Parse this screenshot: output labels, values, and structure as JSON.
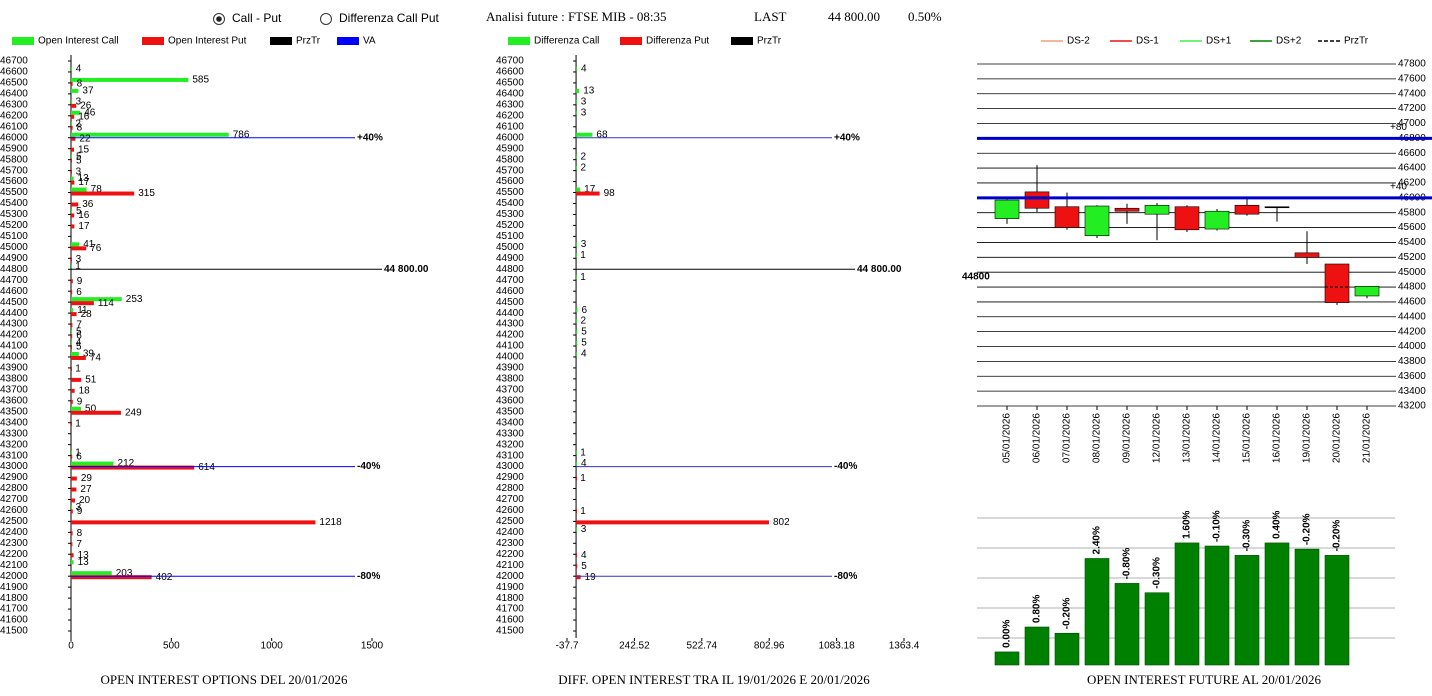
{
  "header": {
    "options": [
      {
        "label": "Call - Put",
        "selected": true
      },
      {
        "label": "Differenza Call Put",
        "selected": false
      }
    ],
    "title": "Analisi future : FTSE MIB - 08:35",
    "last_label": "LAST",
    "last_value": "44 800.00",
    "change": "0.50%"
  },
  "chart_data": [
    {
      "type": "hbar",
      "title": "OPEN INTEREST OPTIONS DEL 20/01/2026",
      "xlim": [
        0,
        1500
      ],
      "xticks": [
        0,
        500,
        1000,
        1500
      ],
      "ylim": [
        41500,
        46700
      ],
      "yticks": [
        46700,
        46600,
        46500,
        46400,
        46300,
        46200,
        46100,
        46000,
        45900,
        45800,
        45700,
        45600,
        45500,
        45400,
        45300,
        45200,
        45100,
        45000,
        44900,
        44800,
        44700,
        44600,
        44500,
        44400,
        44300,
        44200,
        44100,
        44000,
        43900,
        43800,
        43700,
        43600,
        43500,
        43400,
        43300,
        43200,
        43100,
        43000,
        42900,
        42800,
        42700,
        42600,
        42500,
        42400,
        42300,
        42200,
        42100,
        42000,
        41900,
        41800,
        41700,
        41600,
        41500
      ],
      "series": [
        {
          "name": "Open Interest Call",
          "color": "#22ee22",
          "y": [
            46600,
            46500,
            46400,
            46300,
            46200,
            46100,
            46000,
            45800,
            45600,
            45500,
            45300,
            45000,
            44800,
            44500,
            44400,
            44200,
            44100,
            44000,
            43500,
            43100,
            43000,
            42600,
            42100,
            42000
          ],
          "values": [
            4,
            585,
            37,
            3,
            46,
            2,
            786,
            5,
            13,
            78,
            5,
            41,
            1,
            253,
            11,
            5,
            4,
            39,
            50,
            1,
            212,
            3,
            13,
            203
          ]
        },
        {
          "name": "Open Interest Put",
          "color": "#ee1111",
          "y": [
            46500,
            46300,
            46200,
            46100,
            46000,
            45900,
            45800,
            45700,
            45600,
            45500,
            45400,
            45300,
            45200,
            45000,
            44900,
            44700,
            44600,
            44500,
            44400,
            44300,
            44200,
            44100,
            44000,
            43900,
            43800,
            43700,
            43600,
            43500,
            43400,
            43100,
            43000,
            42900,
            42800,
            42700,
            42600,
            42500,
            42400,
            42300,
            42200,
            42000
          ],
          "values": [
            8,
            26,
            16,
            8,
            22,
            15,
            5,
            3,
            17,
            315,
            36,
            16,
            17,
            76,
            3,
            9,
            6,
            114,
            28,
            7,
            6,
            5,
            74,
            1,
            51,
            18,
            9,
            249,
            1,
            6,
            614,
            29,
            27,
            20,
            9,
            1218,
            8,
            7,
            13,
            402
          ]
        }
      ],
      "reference_lines": [
        {
          "name": "PrzTr",
          "color": "#000000",
          "levels": [
            {
              "value": 44800,
              "label": "44 800.00"
            }
          ]
        },
        {
          "name": "VA",
          "color": "#0000ff",
          "levels": [
            {
              "value": 46000,
              "label": "+40%"
            },
            {
              "value": 43000,
              "label": "-40%"
            },
            {
              "value": 42000,
              "label": "-80%"
            }
          ]
        }
      ]
    },
    {
      "type": "hbar",
      "title": "DIFF. OPEN INTEREST TRA IL 19/01/2026 E 20/01/2026",
      "xlim": [
        -37.7,
        1363.4
      ],
      "xticks": [
        -37.7,
        242.52,
        522.74,
        802.96,
        1083.18,
        1363.4
      ],
      "ylim": [
        41500,
        46700
      ],
      "yticks": [
        46700,
        46600,
        46500,
        46400,
        46300,
        46200,
        46100,
        46000,
        45900,
        45800,
        45700,
        45600,
        45500,
        45400,
        45300,
        45200,
        45100,
        45000,
        44900,
        44800,
        44700,
        44600,
        44500,
        44400,
        44300,
        44200,
        44100,
        44000,
        43900,
        43800,
        43700,
        43600,
        43500,
        43400,
        43300,
        43200,
        43100,
        43000,
        42900,
        42800,
        42700,
        42600,
        42500,
        42400,
        42300,
        42200,
        42100,
        42000,
        41900,
        41800,
        41700,
        41600,
        41500
      ],
      "series": [
        {
          "name": "Differenza Call",
          "color": "#22ee22",
          "y": [
            46600,
            46400,
            46300,
            46200,
            46000,
            45800,
            45700,
            45500,
            45000,
            44900,
            44700,
            44400,
            44300,
            44200,
            44100,
            44000,
            43100,
            43000,
            42400
          ],
          "values": [
            4,
            13,
            3,
            3,
            68,
            2,
            2,
            17,
            3,
            1,
            1,
            6,
            2,
            5,
            5,
            4,
            1,
            4,
            3
          ]
        },
        {
          "name": "Differenza Put",
          "color": "#ee1111",
          "y": [
            45500,
            42900,
            42600,
            42500,
            42200,
            42100,
            42000
          ],
          "values": [
            98,
            1,
            1,
            802,
            4,
            5,
            19
          ]
        }
      ],
      "reference_lines": [
        {
          "name": "PrzTr",
          "color": "#000000",
          "levels": [
            {
              "value": 44800,
              "label": "44 800.00"
            }
          ]
        },
        {
          "color": "#3333cc",
          "levels": [
            {
              "value": 46000,
              "label": "+40%"
            },
            {
              "value": 43000,
              "label": "-40%"
            },
            {
              "value": 42000,
              "label": "-80%"
            }
          ]
        }
      ]
    },
    {
      "type": "candlestick",
      "categories": [
        "05/01/2026",
        "06/01/2026",
        "07/01/2026",
        "08/01/2026",
        "09/01/2026",
        "12/01/2026",
        "13/01/2026",
        "14/01/2026",
        "15/01/2026",
        "16/01/2026",
        "19/01/2026",
        "20/01/2026",
        "21/01/2026"
      ],
      "open": [
        45720,
        46080,
        45880,
        45490,
        45860,
        45780,
        45880,
        45580,
        45900,
        45880,
        45260,
        45110,
        44680
      ],
      "high": [
        45980,
        46440,
        46070,
        45900,
        45920,
        45930,
        45900,
        45850,
        46010,
        45880,
        45550,
        45110,
        44810
      ],
      "low": [
        45650,
        45810,
        45570,
        45460,
        45650,
        45430,
        45540,
        45560,
        45760,
        45680,
        45110,
        44560,
        44650
      ],
      "close": [
        45970,
        45860,
        45600,
        45890,
        45820,
        45900,
        45570,
        45820,
        45780,
        45880,
        45200,
        44590,
        44810
      ],
      "up_color": "#22ee22",
      "down_color": "#ee1111",
      "ylim": [
        43200,
        47800
      ],
      "yticks": [
        47800,
        47600,
        47400,
        47200,
        47000,
        46800,
        46600,
        46400,
        46200,
        46000,
        45800,
        45600,
        45400,
        45200,
        45000,
        44800,
        44600,
        44400,
        44200,
        44000,
        43800,
        43600,
        43400,
        43200
      ],
      "legend": [
        {
          "name": "DS-2",
          "color": "#f4a070"
        },
        {
          "name": "DS-1",
          "color": "#ee1111"
        },
        {
          "name": "DS+1",
          "color": "#44ee44"
        },
        {
          "name": "DS+2",
          "color": "#008000"
        },
        {
          "name": "PrzTr",
          "color": "#000000",
          "dashed": true
        }
      ],
      "reference_lines": [
        {
          "color": "#0000cc",
          "levels": [
            {
              "value": 46800,
              "label": "+80"
            },
            {
              "value": 46000,
              "label": "+40"
            }
          ]
        },
        {
          "name": "PrzTr",
          "color": "#000000",
          "dashed": true,
          "levels": [
            {
              "value": 44800,
              "label": "44800"
            }
          ]
        }
      ]
    },
    {
      "type": "bar",
      "title": "OPEN INTEREST FUTURE AL 20/01/2026",
      "cumulative": true,
      "values": [
        0,
        0.8,
        -0.2,
        2.4,
        -0.8,
        -0.3,
        1.6,
        -0.1,
        -0.3,
        0.4,
        -0.2,
        -0.2
      ],
      "value_labels": [
        "0.00%",
        "0.80%",
        "-0.20%",
        "2.40%",
        "-0.80%",
        "-0.30%",
        "1.60%",
        "-0.10%",
        "-0.30%",
        "0.40%",
        "-0.20%",
        "-0.20%"
      ],
      "color": "#008000",
      "ylim": [
        -0.42,
        4.3
      ]
    }
  ]
}
